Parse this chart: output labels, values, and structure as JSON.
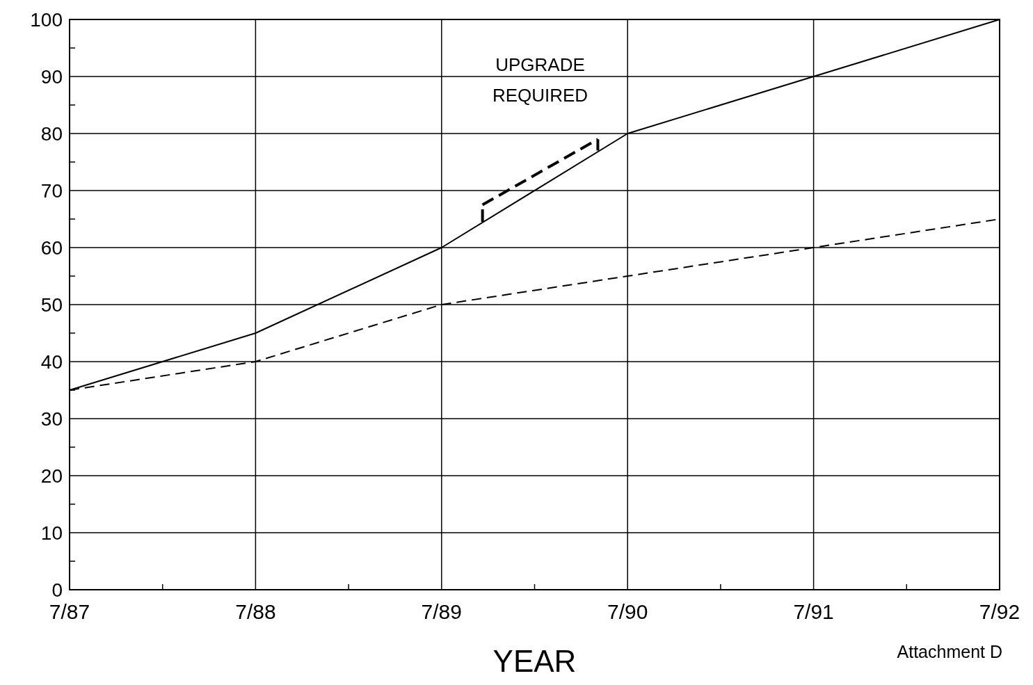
{
  "chart_data": {
    "type": "line",
    "xlabel": "YEAR",
    "categories": [
      "7/87",
      "7/88",
      "7/89",
      "7/90",
      "7/91",
      "7/92"
    ],
    "series": [
      {
        "color": "#000000",
        "line_style": "solid",
        "values": [
          35,
          45,
          60,
          80,
          90,
          100
        ]
      },
      {
        "color": "#000000",
        "line_style": "dashed",
        "values": [
          35,
          40,
          50,
          55,
          60,
          65
        ]
      }
    ],
    "ylim": [
      0,
      100
    ],
    "yticks": [
      0,
      {
        "value": 5,
        "label": null
      },
      10,
      {
        "value": 15,
        "label": null
      },
      20,
      {
        "value": 25,
        "label": null
      },
      30,
      {
        "value": 35,
        "label": null
      },
      40,
      {
        "value": 45,
        "label": null
      },
      50,
      {
        "value": 55,
        "label": null
      },
      60,
      {
        "value": 65,
        "label": null
      },
      70,
      {
        "value": 75,
        "label": null
      },
      80,
      {
        "value": 85,
        "label": null
      },
      90,
      {
        "value": 95,
        "label": null
      },
      100
    ],
    "grid": true,
    "marker": "none",
    "annotations": [
      "UPGRADE\nREQUIRED",
      "Attachment D"
    ]
  }
}
